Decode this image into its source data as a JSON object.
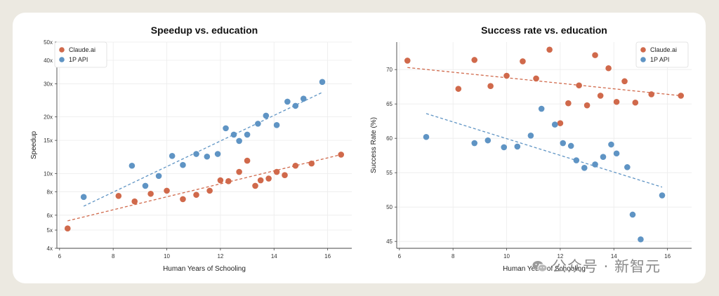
{
  "watermark": "公众号 · 新智元",
  "colors": {
    "claude": "#d0694b",
    "api": "#5f94c4"
  },
  "chart_data": [
    {
      "type": "scatter",
      "title": "Speedup vs. education",
      "xlabel": "Human Years of Schooling",
      "ylabel": "Speedup",
      "y_scale": "log",
      "xlim": [
        5.9,
        16.9
      ],
      "ylim": [
        4,
        50
      ],
      "x_ticks": [
        6,
        8,
        10,
        12,
        14,
        16
      ],
      "y_ticks": [
        4,
        5,
        6,
        8,
        10,
        15,
        20,
        30,
        40,
        50
      ],
      "y_tick_labels": [
        "4x",
        "5x",
        "6x",
        "8x",
        "10x",
        "15x",
        "20x",
        "30x",
        "40x",
        "50x"
      ],
      "legend_position": "top-left",
      "series": [
        {
          "name": "Claude.ai",
          "color": "#d0694b",
          "points": [
            [
              6.3,
              5.1
            ],
            [
              8.2,
              7.6
            ],
            [
              8.8,
              7.1
            ],
            [
              9.4,
              7.8
            ],
            [
              10.0,
              8.1
            ],
            [
              10.6,
              7.3
            ],
            [
              11.1,
              7.7
            ],
            [
              11.6,
              8.1
            ],
            [
              12.0,
              9.2
            ],
            [
              12.3,
              9.1
            ],
            [
              12.7,
              10.2
            ],
            [
              13.0,
              11.7
            ],
            [
              13.3,
              8.6
            ],
            [
              13.5,
              9.2
            ],
            [
              13.8,
              9.4
            ],
            [
              14.1,
              10.2
            ],
            [
              14.4,
              9.8
            ],
            [
              14.8,
              11.0
            ],
            [
              15.4,
              11.3
            ],
            [
              16.5,
              12.6
            ]
          ],
          "trend": [
            [
              6.3,
              5.6
            ],
            [
              16.5,
              12.6
            ]
          ]
        },
        {
          "name": "1P API",
          "color": "#5f94c4",
          "points": [
            [
              6.9,
              7.5
            ],
            [
              8.7,
              11.0
            ],
            [
              9.2,
              8.6
            ],
            [
              9.7,
              9.7
            ],
            [
              10.2,
              12.4
            ],
            [
              10.6,
              11.1
            ],
            [
              11.1,
              12.7
            ],
            [
              11.5,
              12.3
            ],
            [
              11.9,
              12.7
            ],
            [
              12.2,
              17.4
            ],
            [
              12.5,
              16.1
            ],
            [
              12.7,
              14.9
            ],
            [
              13.0,
              16.1
            ],
            [
              13.4,
              18.4
            ],
            [
              13.7,
              20.3
            ],
            [
              14.1,
              18.1
            ],
            [
              14.5,
              24.1
            ],
            [
              14.8,
              22.9
            ],
            [
              15.1,
              25.0
            ],
            [
              15.8,
              30.7
            ]
          ],
          "trend": [
            [
              6.9,
              6.7
            ],
            [
              15.8,
              27.0
            ]
          ]
        }
      ]
    },
    {
      "type": "scatter",
      "title": "Success rate vs. education",
      "xlabel": "Human Years of Schooling",
      "ylabel": "Success Rate (%)",
      "xlim": [
        5.9,
        16.9
      ],
      "ylim": [
        44,
        74
      ],
      "x_ticks": [
        6,
        8,
        10,
        12,
        14,
        16
      ],
      "y_ticks": [
        45,
        50,
        55,
        60,
        65,
        70
      ],
      "legend_position": "top-right",
      "series": [
        {
          "name": "Claude.ai",
          "color": "#d0694b",
          "points": [
            [
              6.3,
              71.3
            ],
            [
              8.2,
              67.2
            ],
            [
              8.8,
              71.4
            ],
            [
              9.4,
              67.6
            ],
            [
              10.0,
              69.1
            ],
            [
              10.6,
              71.2
            ],
            [
              11.1,
              68.7
            ],
            [
              11.6,
              72.9
            ],
            [
              12.0,
              62.2
            ],
            [
              12.3,
              65.1
            ],
            [
              12.7,
              67.7
            ],
            [
              13.0,
              64.8
            ],
            [
              13.3,
              72.1
            ],
            [
              13.5,
              66.2
            ],
            [
              13.8,
              70.2
            ],
            [
              14.1,
              65.3
            ],
            [
              14.4,
              68.3
            ],
            [
              14.8,
              65.2
            ],
            [
              15.4,
              66.4
            ],
            [
              16.5,
              66.2
            ]
          ],
          "trend": [
            [
              6.3,
              70.3
            ],
            [
              16.5,
              66.2
            ]
          ]
        },
        {
          "name": "1P API",
          "color": "#5f94c4",
          "points": [
            [
              7.0,
              60.2
            ],
            [
              8.8,
              59.3
            ],
            [
              9.3,
              59.7
            ],
            [
              9.9,
              58.7
            ],
            [
              10.4,
              58.8
            ],
            [
              10.9,
              60.4
            ],
            [
              11.3,
              64.3
            ],
            [
              11.8,
              62.0
            ],
            [
              12.1,
              59.3
            ],
            [
              12.4,
              58.9
            ],
            [
              12.6,
              56.8
            ],
            [
              12.9,
              55.7
            ],
            [
              13.3,
              56.2
            ],
            [
              13.6,
              57.3
            ],
            [
              13.9,
              59.1
            ],
            [
              14.1,
              57.8
            ],
            [
              14.5,
              55.8
            ],
            [
              14.7,
              48.9
            ],
            [
              15.0,
              45.3
            ],
            [
              15.8,
              51.7
            ]
          ],
          "trend": [
            [
              7.0,
              63.6
            ],
            [
              15.8,
              52.9
            ]
          ]
        }
      ]
    }
  ]
}
